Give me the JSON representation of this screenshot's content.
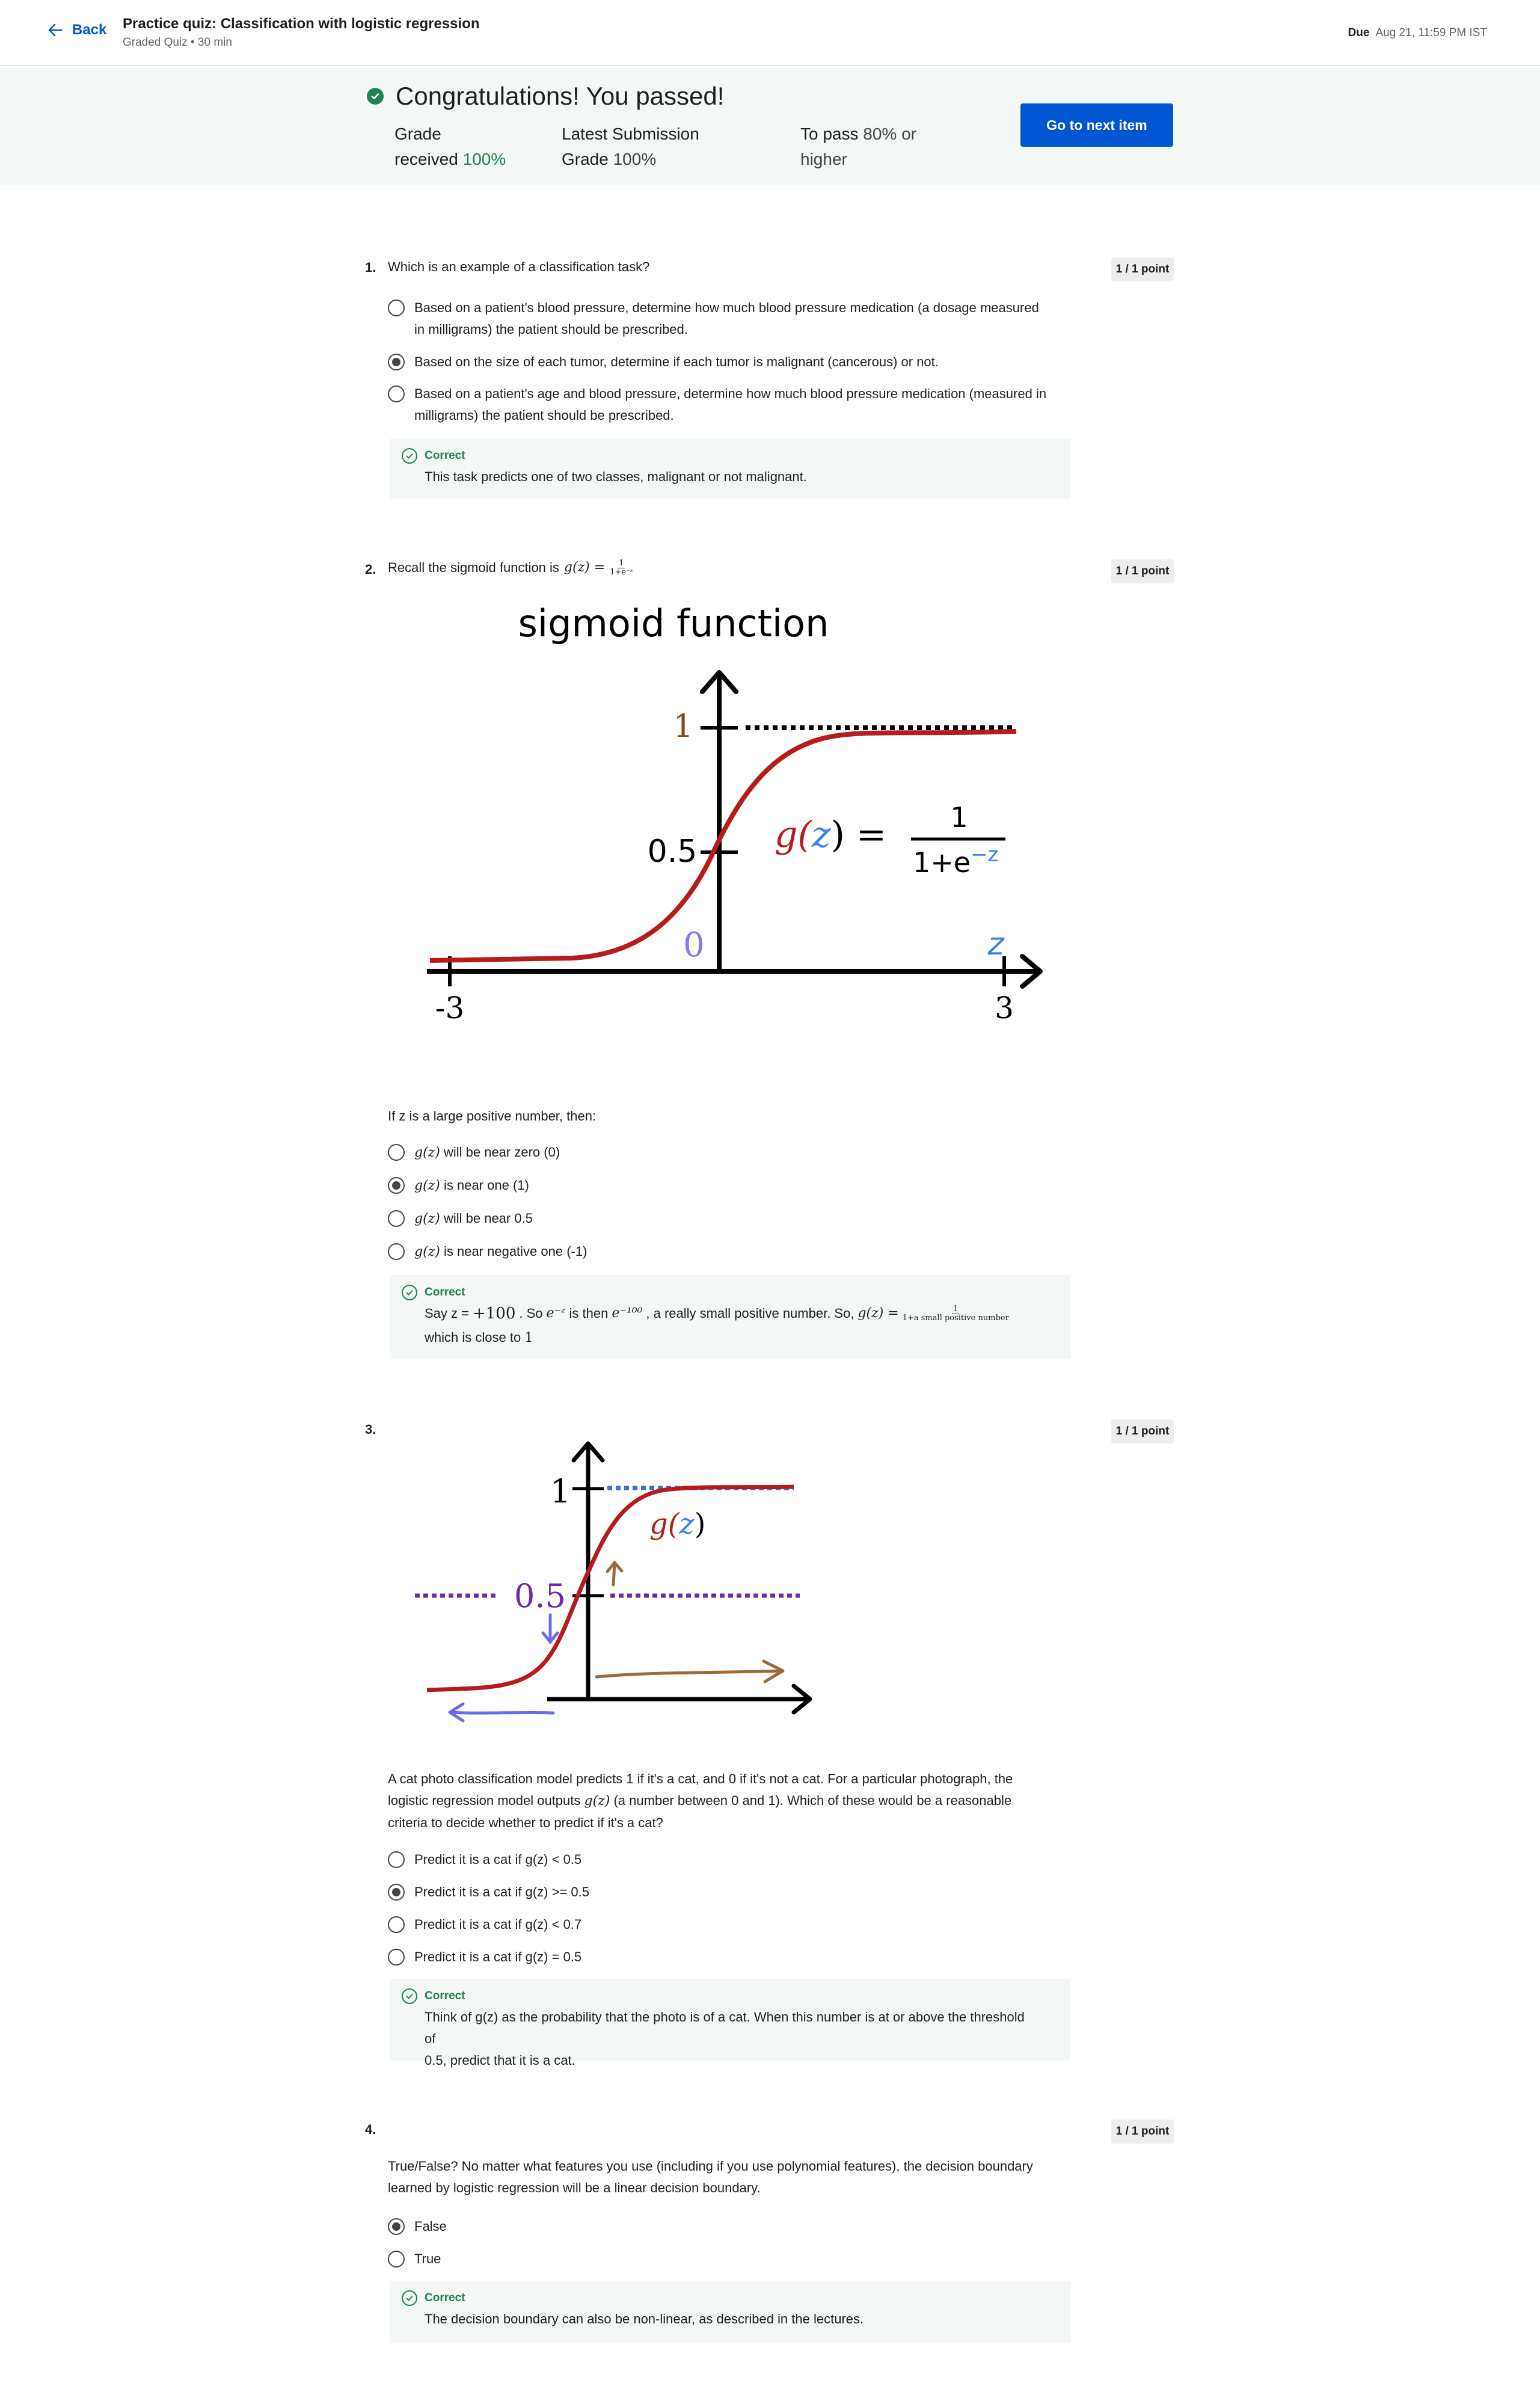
{
  "header": {
    "back_label": "Back",
    "title": "Practice quiz: Classification with logistic regression",
    "subtitle": "Graded Quiz • 30 min",
    "due_label": "Due",
    "due_value": "Aug 21, 11:59 PM IST"
  },
  "banner": {
    "message": "Congratulations! You passed!",
    "grade_label_1": "Grade",
    "grade_label_2": "received",
    "grade_value": "100%",
    "latest_label_1": "Latest Submission",
    "latest_label_2": "Grade",
    "latest_value": "100%",
    "pass_label_1": "To pass",
    "pass_value": "80% or",
    "pass_label_2": "higher",
    "next_button": "Go to next item"
  },
  "questions": [
    {
      "number": "1.",
      "text": "Which is an example of a classification task?",
      "points": "1 / 1 point",
      "options": [
        {
          "line1": "Based on a patient's blood pressure, determine how much blood pressure medication (a dosage measured",
          "line2": "in milligrams) the patient should be prescribed.",
          "selected": false
        },
        {
          "line1": "Based on the size of each tumor, determine if each tumor is malignant (cancerous) or not.",
          "line2": "",
          "selected": true
        },
        {
          "line1": "Based on a patient's age and blood pressure, determine how much blood pressure medication (measured in",
          "line2": "milligrams) the patient should be prescribed.",
          "selected": false
        }
      ],
      "feedback_label": "Correct",
      "feedback": "This task predicts one of two classes, malignant or not malignant."
    },
    {
      "number": "2.",
      "text_prefix": "Recall the sigmoid function is",
      "formula": "g(z) =",
      "frac_num": "1",
      "frac_den": "1+e⁻ᶻ",
      "points": "1 / 1 point",
      "prompt": "If z is a large positive number, then:",
      "options": [
        {
          "math": "g(z)",
          "label": "will be near zero (0)",
          "selected": false
        },
        {
          "math": "g(z)",
          "label": "is near one (1)",
          "selected": true
        },
        {
          "math": "g(z)",
          "label": "will be near 0.5",
          "selected": false
        },
        {
          "math": "g(z)",
          "label": "is near negative one (-1)",
          "selected": false
        }
      ],
      "feedback_label": "Correct",
      "fb_a": "Say z =",
      "fb_b": "+100",
      "fb_c": ". So",
      "fb_d": "e⁻ᶻ",
      "fb_e": "is then",
      "fb_f": "e⁻¹⁰⁰",
      "fb_g": ", a really small positive number. So,",
      "fb_h": "g(z) =",
      "fb_num": "1",
      "fb_den": "1+a small positive number",
      "fb_line2": "which is close to",
      "fb_one": "1"
    },
    {
      "number": "3.",
      "points": "1 / 1 point",
      "text_l1": "A cat photo classification model predicts 1 if it's a cat, and 0 if it's not a cat. For a particular photograph, the",
      "text_l2a": "logistic regression model outputs",
      "text_l2m": "g(z)",
      "text_l2b": "(a number between 0 and 1). Which of these would be a reasonable",
      "text_l3": "criteria to decide whether to predict if it's a cat?",
      "options": [
        {
          "label": "Predict it is a cat if g(z) < 0.5",
          "selected": false
        },
        {
          "label": "Predict it is a cat if g(z) >= 0.5",
          "selected": true
        },
        {
          "label": "Predict it is a cat if g(z) < 0.7",
          "selected": false
        },
        {
          "label": "Predict it is a cat if g(z) = 0.5",
          "selected": false
        }
      ],
      "feedback_label": "Correct",
      "fb_l1": "Think of g(z) as the probability that the photo is of a cat. When this number is at or above the threshold of",
      "fb_l2": "0.5, predict that it is a cat."
    },
    {
      "number": "4.",
      "points": "1 / 1 point",
      "text_l1": "True/False? No matter what features you use (including if you use polynomial features), the decision boundary",
      "text_l2": "learned by logistic regression will be a linear decision boundary.",
      "options": [
        {
          "label": "False",
          "selected": true
        },
        {
          "label": "True",
          "selected": false
        }
      ],
      "feedback_label": "Correct",
      "feedback": "The decision boundary can also be non-linear, as described in the lectures."
    }
  ],
  "figure1": {
    "title": "sigmoid function",
    "y_one": "1",
    "y_half": "0.5",
    "zero": "0",
    "x_min": "-3",
    "x_max": "3",
    "z_label": "z",
    "eq_g": "g(",
    "eq_z": "z",
    "eq_close": ") =",
    "eq_num": "1",
    "eq_den_a": "1+e",
    "eq_den_b": "−z",
    "color_curve": "#b71c1c",
    "color_z": "#3b82f6",
    "color_one": "#8b4513",
    "color_zero": "#7b7bf0"
  },
  "figure2": {
    "y_one": "1",
    "y_half": "0.5",
    "eq_g": "g(",
    "eq_z": "z",
    "eq_close": ")",
    "color_curve": "#b71c1c",
    "color_top": "#3f6fd1",
    "color_mid": "#6a2bb0",
    "color_arrow": "#a0693b",
    "color_left_arrow": "#6b6bef"
  }
}
